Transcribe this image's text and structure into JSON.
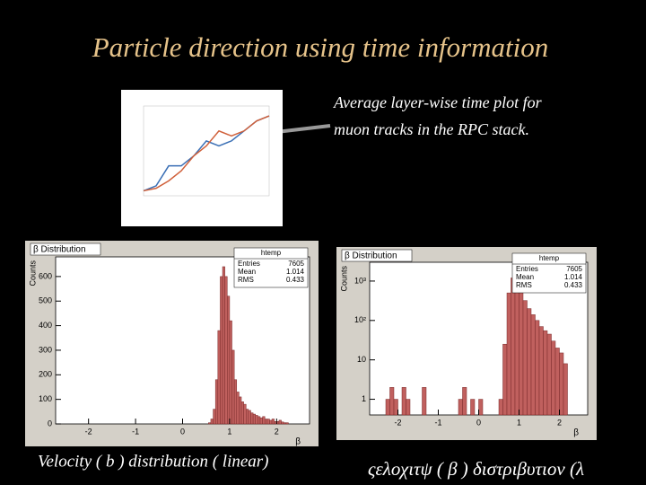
{
  "title": "Particle direction using time information",
  "annotation": [
    "Average  layer-wise  time plot for",
    "muon tracks in the RPC stack."
  ],
  "left_caption": "Velocity ( b ) distribution  ( linear)",
  "right_caption": "ςελοχιτψ ( β ) διστριβυτιον (λ",
  "chart_data": [
    {
      "type": "line",
      "x": [
        0,
        1,
        2,
        3,
        4,
        5,
        6,
        7,
        8,
        9,
        10
      ],
      "xlim": [
        0,
        10
      ],
      "ylim": [
        0,
        18
      ],
      "series": [
        {
          "color": "#3a6fb5",
          "values": [
            1,
            2,
            6,
            6,
            8,
            11,
            10,
            11,
            13,
            15,
            16
          ]
        },
        {
          "color": "#d0603a",
          "values": [
            1,
            1.5,
            3,
            5,
            8,
            10,
            13,
            12,
            13,
            15,
            16
          ]
        }
      ]
    },
    {
      "type": "histogram",
      "title": "β Distribution",
      "ylabel": "Counts",
      "xlabel": "β",
      "color": "#c0605e",
      "stats": {
        "name": "htemp",
        "entries_label": "Entries",
        "entries": 7605,
        "mean_label": "Mean",
        "mean": 1.014,
        "rms_label": "RMS",
        "rms": 0.433
      },
      "bins": [
        0.55,
        0.6,
        0.65,
        0.7,
        0.75,
        0.8,
        0.85,
        0.9,
        0.95,
        1.0,
        1.05,
        1.1,
        1.15,
        1.2,
        1.25,
        1.3,
        1.35,
        1.4,
        1.45,
        1.5,
        1.55,
        1.6,
        1.65,
        1.7,
        1.75,
        1.8,
        1.85,
        1.9,
        1.95,
        2.0,
        2.05,
        2.1,
        2.15,
        2.2,
        2.25
      ],
      "counts": [
        5,
        20,
        60,
        180,
        380,
        600,
        640,
        600,
        520,
        420,
        300,
        180,
        130,
        110,
        90,
        80,
        60,
        55,
        45,
        40,
        35,
        30,
        25,
        30,
        20,
        20,
        15,
        20,
        10,
        10,
        15,
        8,
        5,
        5
      ],
      "xlim": [
        -2.7,
        2.7
      ],
      "xticks": [
        -2,
        -1,
        0,
        1,
        2
      ],
      "ylim": [
        0,
        680
      ],
      "yticks": [
        0,
        100,
        200,
        300,
        400,
        500,
        600
      ]
    },
    {
      "type": "histogram",
      "title": "β Distribution",
      "ylabel": "Counts",
      "xlabel": "β",
      "color": "#c0605e",
      "log_y": true,
      "stats": {
        "name": "htemp",
        "entries_label": "Entries",
        "entries": 7605,
        "mean_label": "Mean",
        "mean": 1.014,
        "rms_label": "RMS",
        "rms": 0.433
      },
      "bins": [
        -2.3,
        -2.2,
        -2.1,
        -2.0,
        -1.9,
        -1.8,
        -1.7,
        -1.6,
        -1.5,
        -1.4,
        -1.3,
        -1.2,
        -1.1,
        -1.0,
        -0.9,
        -0.8,
        -0.7,
        -0.6,
        -0.5,
        -0.4,
        -0.3,
        -0.2,
        -0.1,
        0.0,
        0.1,
        0.2,
        0.3,
        0.4,
        0.5,
        0.6,
        0.7,
        0.8,
        0.9,
        1.0,
        1.1,
        1.2,
        1.3,
        1.4,
        1.5,
        1.6,
        1.7,
        1.8,
        1.9,
        2.0,
        2.1,
        2.2
      ],
      "counts": [
        1,
        2,
        1,
        0,
        2,
        1,
        0,
        0,
        0,
        2,
        0,
        0,
        0,
        0,
        0,
        0,
        0,
        0,
        1,
        2,
        0,
        1,
        0,
        1,
        0,
        0,
        0,
        0,
        1,
        25,
        500,
        1200,
        1100,
        720,
        320,
        200,
        140,
        100,
        70,
        55,
        45,
        30,
        20,
        15,
        8
      ],
      "xlim": [
        -2.7,
        2.7
      ],
      "xticks": [
        -2,
        -1,
        0,
        1,
        2
      ],
      "ylim": [
        0.4,
        3000
      ],
      "yticks": [
        1,
        10,
        {
          "value": 100,
          "label": "10²"
        },
        {
          "value": 1000,
          "label": "10³"
        }
      ]
    }
  ]
}
